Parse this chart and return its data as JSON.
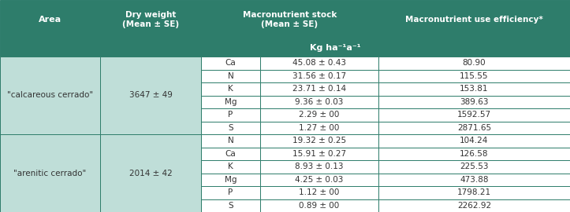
{
  "header_bg": "#2e7d6b",
  "header_text_color": "#ffffff",
  "row_bg_light": "#bfded8",
  "row_bg_white": "#ffffff",
  "border_color": "#2e7d6b",
  "cell_text_color": "#333333",
  "area1": "\"calcareous cerrado\"",
  "area1_dry": "3647 ± 49",
  "area2": "\"arenitic cerrado\"",
  "area2_dry": "2014 ± 42",
  "rows_area1": [
    [
      "Ca",
      "45.08 ± 0.43",
      "80.90"
    ],
    [
      "N",
      "31.56 ± 0.17",
      "115.55"
    ],
    [
      "K",
      "23.71 ± 0.14",
      "153.81"
    ],
    [
      "Mg",
      "9.36 ± 0.03",
      "389.63"
    ],
    [
      "P",
      "2.29 ± 00",
      "1592.57"
    ],
    [
      "S",
      "1.27 ± 00",
      "2871.65"
    ]
  ],
  "rows_area2": [
    [
      "N",
      "19.32 ± 0.25",
      "104.24"
    ],
    [
      "Ca",
      "15.91 ± 0.27",
      "126.58"
    ],
    [
      "K",
      "8.93 ± 0.13",
      "225.53"
    ],
    [
      "Mg",
      "4.25 ± 0.03",
      "473.88"
    ],
    [
      "P",
      "1.12 ± 00",
      "1798.21"
    ],
    [
      "S",
      "0.89 ± 00",
      "2262.92"
    ]
  ]
}
